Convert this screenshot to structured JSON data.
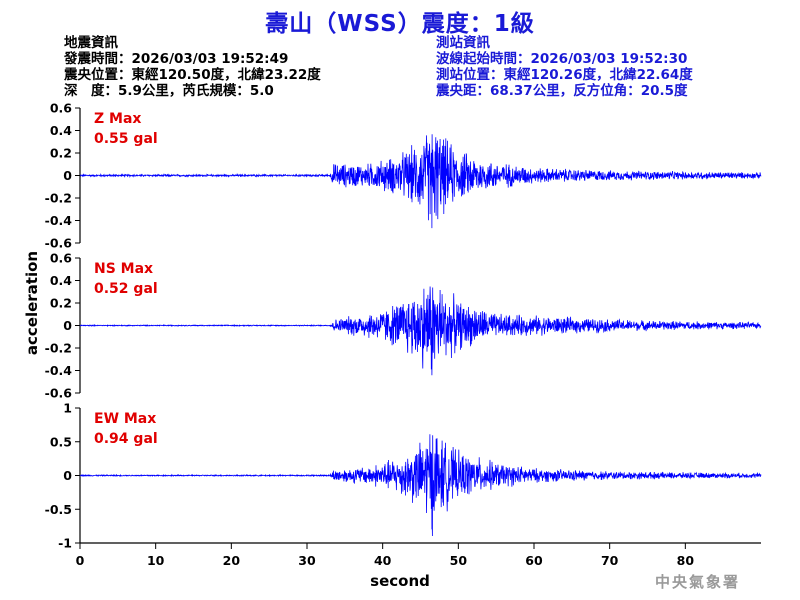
{
  "title": "壽山（WSS）震度：1級",
  "event_info": {
    "heading": "地震資訊",
    "origin_time": "發震時間：2026/03/03 19:52:49",
    "epicenter": "震央位置：東經120.50度，北緯23.22度",
    "depth_magnitude": "深　度：5.9公里，芮氏規模：5.0"
  },
  "station_info": {
    "heading": "測站資訊",
    "wave_start": "波線起始時間：2026/03/03 19:52:30",
    "station_location": "測站位置：東經120.26度，北緯22.64度",
    "distance_azimuth": "震央距：68.37公里，反方位角：20.5度"
  },
  "agency": "中央氣象署",
  "colors": {
    "title": "#1a1ad6",
    "trace": "#0000ff",
    "max_label": "#e00000",
    "station_text": "#1a1ad6"
  },
  "chart_data": {
    "type": "line",
    "xlabel": "second",
    "ylabel": "acceleration",
    "xlim": [
      0,
      90
    ],
    "x_ticks": [
      0,
      10,
      20,
      30,
      40,
      50,
      60,
      70,
      80
    ],
    "x_tick_labels": [
      "0",
      "10",
      "20",
      "30",
      "40",
      "50",
      "60",
      "70",
      "80"
    ],
    "grid": false,
    "panels": [
      {
        "component": "Z",
        "max_label": "Z Max",
        "max_value_label": "0.55 gal",
        "peak": 0.55,
        "ylim": [
          -0.6,
          0.6
        ],
        "y_ticks": [
          0.6,
          0.4,
          0.2,
          0,
          -0.2,
          -0.4,
          -0.6
        ],
        "y_tick_labels": [
          "0.6",
          "0.4",
          "0.2",
          "0",
          "-0.2",
          "-0.4",
          "-0.6"
        ],
        "envelope": [
          [
            0,
            0.01
          ],
          [
            33,
            0.01
          ],
          [
            33.5,
            0.12
          ],
          [
            38,
            0.12
          ],
          [
            42,
            0.2
          ],
          [
            44,
            0.3
          ],
          [
            46,
            0.45
          ],
          [
            46.5,
            0.55
          ],
          [
            48,
            0.4
          ],
          [
            50,
            0.25
          ],
          [
            54,
            0.15
          ],
          [
            60,
            0.08
          ],
          [
            70,
            0.05
          ],
          [
            80,
            0.04
          ],
          [
            90,
            0.03
          ]
        ]
      },
      {
        "component": "NS",
        "max_label": "NS Max",
        "max_value_label": "0.52 gal",
        "peak": 0.52,
        "ylim": [
          -0.6,
          0.6
        ],
        "y_ticks": [
          0.6,
          0.4,
          0.2,
          0,
          -0.2,
          -0.4,
          -0.6
        ],
        "y_tick_labels": [
          "0.6",
          "0.4",
          "0.2",
          "0",
          "-0.2",
          "-0.4",
          "-0.6"
        ],
        "envelope": [
          [
            0,
            0.005
          ],
          [
            33,
            0.005
          ],
          [
            33.5,
            0.06
          ],
          [
            36,
            0.1
          ],
          [
            40,
            0.16
          ],
          [
            43,
            0.28
          ],
          [
            45,
            0.4
          ],
          [
            46.5,
            0.52
          ],
          [
            48,
            0.38
          ],
          [
            50,
            0.25
          ],
          [
            55,
            0.12
          ],
          [
            60,
            0.1
          ],
          [
            65,
            0.08
          ],
          [
            75,
            0.05
          ],
          [
            90,
            0.03
          ]
        ]
      },
      {
        "component": "EW",
        "max_label": "EW Max",
        "max_value_label": "0.94 gal",
        "peak": 0.94,
        "ylim": [
          -1,
          1
        ],
        "y_ticks": [
          1,
          0.5,
          0,
          -0.5,
          -1
        ],
        "y_tick_labels": [
          "1",
          "0.5",
          "0",
          "-0.5",
          "-1"
        ],
        "envelope": [
          [
            0,
            0.01
          ],
          [
            33,
            0.01
          ],
          [
            33.5,
            0.1
          ],
          [
            38,
            0.15
          ],
          [
            42,
            0.3
          ],
          [
            45,
            0.55
          ],
          [
            46.5,
            0.94
          ],
          [
            48,
            0.6
          ],
          [
            50,
            0.4
          ],
          [
            55,
            0.22
          ],
          [
            60,
            0.12
          ],
          [
            70,
            0.07
          ],
          [
            80,
            0.05
          ],
          [
            90,
            0.04
          ]
        ]
      }
    ]
  }
}
